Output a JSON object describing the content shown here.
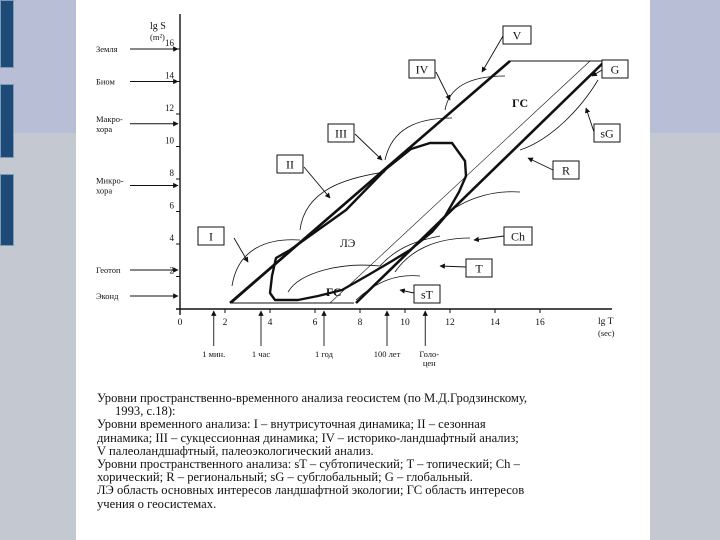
{
  "diagram": {
    "y_axis_label_line1": "lg S",
    "y_axis_label_line2": "(m²)",
    "x_axis_label_line1": "lg T",
    "x_axis_label_line2": "(sec)",
    "y_ticks": [
      {
        "v": 2,
        "label": "2"
      },
      {
        "v": 4,
        "label": "4"
      },
      {
        "v": 6,
        "label": "6"
      },
      {
        "v": 8,
        "label": "8"
      },
      {
        "v": 10,
        "label": "10"
      },
      {
        "v": 12,
        "label": "12"
      },
      {
        "v": 14,
        "label": "14"
      },
      {
        "v": 16,
        "label": "16"
      }
    ],
    "x_ticks": [
      {
        "v": 0,
        "label": "0"
      },
      {
        "v": 2,
        "label": "2"
      },
      {
        "v": 4,
        "label": "4"
      },
      {
        "v": 6,
        "label": "6"
      },
      {
        "v": 8,
        "label": "8"
      },
      {
        "v": 10,
        "label": "10"
      },
      {
        "v": 12,
        "label": "12"
      },
      {
        "v": 14,
        "label": "14"
      },
      {
        "v": 16,
        "label": "16"
      }
    ],
    "space_levels": [
      {
        "v": 16,
        "lines": [
          "Земля"
        ]
      },
      {
        "v": 14,
        "lines": [
          "Биом"
        ]
      },
      {
        "v": 11.4,
        "lines": [
          "Макро-",
          "хора"
        ]
      },
      {
        "v": 7.6,
        "lines": [
          "Микро-",
          "хора"
        ]
      },
      {
        "v": 2.4,
        "lines": [
          "Геотоп"
        ]
      },
      {
        "v": 0.8,
        "lines": [
          "Эконд"
        ]
      }
    ],
    "time_levels": [
      {
        "v": 1.5,
        "lines": [
          "1 мин."
        ]
      },
      {
        "v": 3.6,
        "lines": [
          "1 час"
        ]
      },
      {
        "v": 6.4,
        "lines": [
          "1 год"
        ]
      },
      {
        "v": 9.2,
        "lines": [
          "100 лет"
        ]
      },
      {
        "v": 10.9,
        "lines": [
          "Голо-",
          "цен"
        ]
      }
    ],
    "boxes": [
      "I",
      "II",
      "III",
      "IV",
      "V",
      "G",
      "sG",
      "R",
      "Ch",
      "T",
      "sT"
    ],
    "zone_label_le": "ЛЭ",
    "zone_label_gs_top": "ГС",
    "zone_label_gs_bottom": "ГС"
  },
  "caption": {
    "lines": [
      "Уровни пространственно-временного анализа геосистем (по М.Д.Гродзинскому,",
      "1993, с.18):",
      "Уровни временного анализа: I – внутрисуточная динамика; II – сезонная",
      "динамика; III – сукцессионная динамика; IV – историко-ландшафтный анализ;",
      "V палеоландшафтный, палеоэкологический анализ.",
      "Уровни пространственного анализа: sT – субтопический; T – топический; Ch –",
      "хорический; R – региональный; sG – субглобальный; G – глобальный.",
      "ЛЭ область основных интересов ландшафтной экологии; ГС область интересов",
      "учения о геосистемах."
    ]
  },
  "colors": {
    "background": "#b8bed6",
    "band": "#c4c8d0",
    "sidebar_block": "#1e4a78",
    "sheet": "#ffffff",
    "ink": "#111111"
  }
}
